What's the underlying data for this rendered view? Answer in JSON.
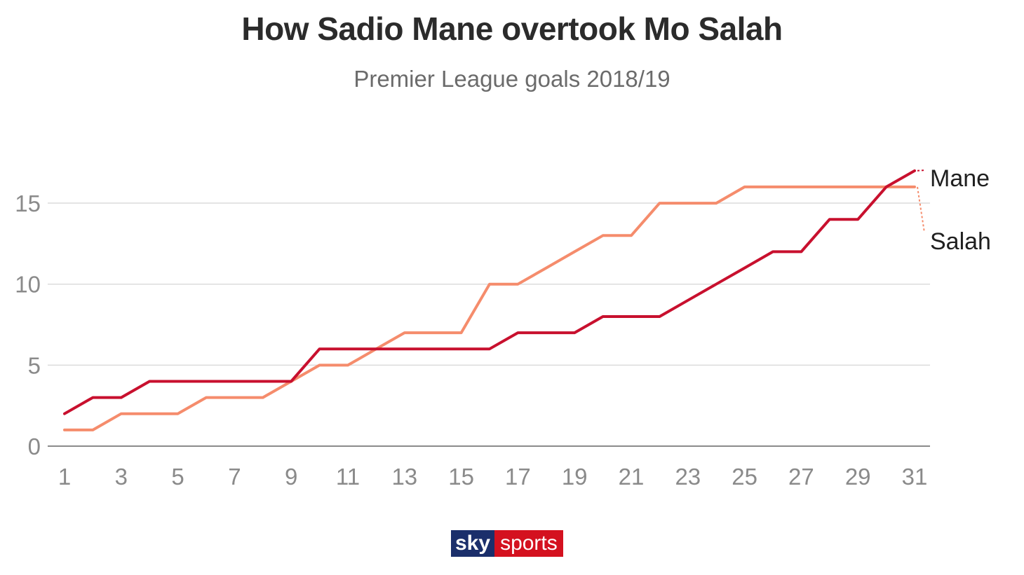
{
  "chart_data": {
    "type": "line",
    "title": "How Sadio Mane overtook Mo Salah",
    "subtitle": "Premier League goals 2018/19",
    "xlabel": "",
    "ylabel": "",
    "xlim": [
      1,
      31
    ],
    "ylim": [
      0,
      17
    ],
    "x_ticks": [
      "1",
      "3",
      "5",
      "7",
      "9",
      "11",
      "13",
      "15",
      "17",
      "19",
      "21",
      "23",
      "25",
      "27",
      "29",
      "31"
    ],
    "y_ticks": [
      "0",
      "5",
      "10",
      "15"
    ],
    "grid": true,
    "x": [
      1,
      2,
      3,
      4,
      5,
      6,
      7,
      8,
      9,
      10,
      11,
      12,
      13,
      14,
      15,
      16,
      17,
      18,
      19,
      20,
      21,
      22,
      23,
      24,
      25,
      26,
      27,
      28,
      29,
      30,
      31
    ],
    "series": [
      {
        "name": "Mane",
        "color": "#c8102e",
        "values": [
          2,
          3,
          3,
          4,
          4,
          4,
          4,
          4,
          4,
          6,
          6,
          6,
          6,
          6,
          6,
          6,
          7,
          7,
          7,
          8,
          8,
          8,
          9,
          10,
          11,
          12,
          12,
          14,
          14,
          16,
          17
        ]
      },
      {
        "name": "Salah",
        "color": "#f58c6c",
        "values": [
          1,
          1,
          2,
          2,
          2,
          3,
          3,
          3,
          4,
          5,
          5,
          6,
          7,
          7,
          7,
          10,
          10,
          11,
          12,
          13,
          13,
          15,
          15,
          15,
          16,
          16,
          16,
          16,
          16,
          16,
          16
        ]
      }
    ]
  },
  "logo": {
    "sky": "sky",
    "sports": "sports"
  }
}
